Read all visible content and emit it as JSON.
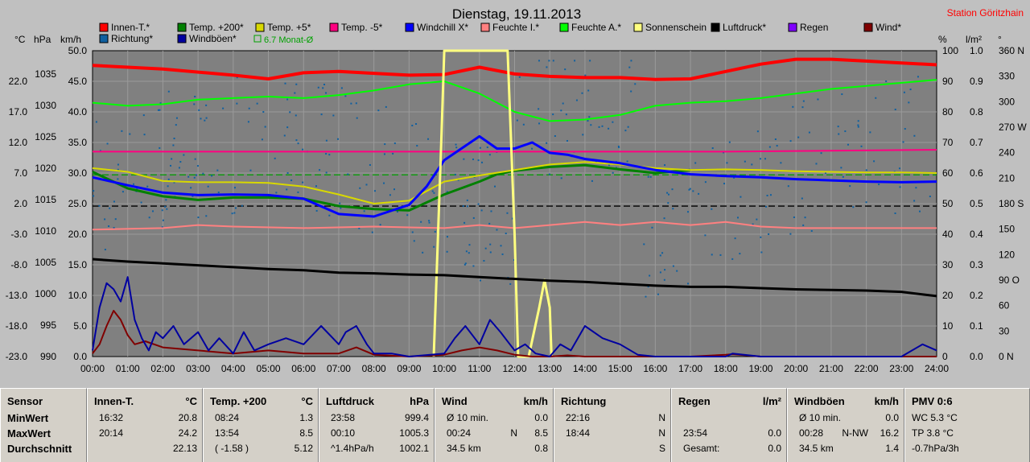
{
  "header": {
    "title": "Dienstag, 19.11.2013",
    "station": "Station Göritzhain",
    "unit_c": "°C",
    "unit_hpa": "hPa",
    "unit_kmh": "km/h",
    "unit_pct": "%",
    "unit_lm2": "l/m²",
    "unit_deg": "°"
  },
  "legend": [
    {
      "label": "Innen-T.*",
      "color": "#ff0000"
    },
    {
      "label": "Temp. +200*",
      "color": "#008000"
    },
    {
      "label": "Temp. +5*",
      "color": "#d8d800"
    },
    {
      "label": "Temp. -5*",
      "color": "#ff0080"
    },
    {
      "label": "Windchill X*",
      "color": "#0000ff"
    },
    {
      "label": "Feuchte I.*",
      "color": "#ff8080"
    },
    {
      "label": "Feuchte A.*",
      "color": "#00ff00"
    },
    {
      "label": "Sonnenschein",
      "color": "#ffff80"
    },
    {
      "label": "Luftdruck*",
      "color": "#000000"
    },
    {
      "label": "Regen",
      "color": "#8000ff"
    },
    {
      "label": "Wind*",
      "color": "#800000"
    },
    {
      "label": "Richtung*",
      "color": "#1060a0"
    },
    {
      "label": "Windböen*",
      "color": "#0000a0"
    },
    {
      "label": "6.7 Monat-Ø",
      "color": "#00a000"
    }
  ],
  "chart_data": {
    "type": "line",
    "title": "Dienstag, 19.11.2013",
    "x_tick_labels": [
      "00:00",
      "01:00",
      "02:00",
      "03:00",
      "04:00",
      "05:00",
      "06:00",
      "07:00",
      "08:00",
      "09:00",
      "10:00",
      "11:00",
      "12:00",
      "13:00",
      "14:00",
      "15:00",
      "16:00",
      "17:00",
      "18:00",
      "19:00",
      "20:00",
      "21:00",
      "22:00",
      "23:00",
      "24:00"
    ],
    "axes": {
      "celsius": {
        "unit": "°C",
        "range": [
          -23.0,
          27.0
        ],
        "ticks": [
          "22.0",
          "17.0",
          "12.0",
          "7.0",
          "2.0",
          "-3.0",
          "-8.0",
          "-13.0",
          "-18.0",
          "-23.0"
        ]
      },
      "hpa": {
        "unit": "hPa",
        "range": [
          990,
          1039.6
        ],
        "ticks": [
          "1035",
          "1030",
          "1025",
          "1020",
          "1015",
          "1010",
          "1005",
          "1000",
          "995",
          "990"
        ]
      },
      "kmh": {
        "unit": "km/h",
        "range": [
          0,
          50
        ],
        "ticks": [
          "50.0",
          "45.0",
          "40.0",
          "35.0",
          "30.0",
          "25.0",
          "20.0",
          "15.0",
          "10.0",
          "5.0",
          "0.0"
        ]
      },
      "percent": {
        "unit": "%",
        "range": [
          0,
          100
        ],
        "ticks": [
          "100",
          "90",
          "80",
          "70",
          "60",
          "50",
          "40",
          "30",
          "20",
          "10",
          "0"
        ]
      },
      "rain": {
        "unit": "l/m²",
        "range": [
          0,
          1.0
        ],
        "ticks": [
          "1.0",
          "0.9",
          "0.8",
          "0.7",
          "0.6",
          "0.5",
          "0.4",
          "0.3",
          "0.2",
          "0.1",
          "0.0"
        ]
      },
      "direction": {
        "unit": "°",
        "range": [
          0,
          360
        ],
        "ticks": [
          "360 N",
          "330",
          "300",
          "270 W",
          "240",
          "210",
          "180 S",
          "150",
          "120",
          "90 O",
          "60",
          "30",
          "0 N"
        ]
      }
    },
    "reference_lines": [
      {
        "name": "6.7 Monat-Ø",
        "axis": "celsius",
        "value": 6.7,
        "color": "#00a000"
      },
      {
        "axis": "kmh",
        "value": 24.6,
        "color": "#000000"
      }
    ],
    "series": [
      {
        "name": "Innen-T.*",
        "axis": "celsius",
        "color": "#ff0000",
        "width": 4,
        "x": [
          0,
          2,
          4,
          5,
          6,
          7,
          8,
          9,
          10,
          11,
          12,
          13,
          14,
          15,
          16,
          17,
          18,
          19,
          20,
          21,
          22,
          23,
          24
        ],
        "y": [
          24.6,
          24.0,
          23.0,
          22.4,
          23.4,
          23.6,
          23.3,
          23.0,
          23.1,
          24.3,
          23.2,
          22.8,
          22.6,
          22.6,
          22.3,
          22.4,
          23.6,
          24.8,
          25.6,
          25.6,
          25.3,
          25.0,
          24.7
        ]
      },
      {
        "name": "Temp. +200*",
        "axis": "celsius",
        "color": "#008000",
        "width": 3,
        "x": [
          0,
          1,
          2,
          3,
          4,
          5,
          6,
          7,
          8,
          9,
          10,
          11,
          11.5,
          12,
          13,
          14,
          15,
          16,
          17
        ],
        "y": [
          7.2,
          4.5,
          3.2,
          2.6,
          3.0,
          3.0,
          2.8,
          1.6,
          1.1,
          0.9,
          3.5,
          5.6,
          6.8,
          7.4,
          8.0,
          8.3,
          7.6,
          7.0,
          7.5
        ]
      },
      {
        "name": "Temp. +5*",
        "axis": "celsius",
        "color": "#d8d800",
        "width": 2,
        "x": [
          0,
          1,
          2,
          3,
          4,
          5,
          6,
          7,
          8,
          9,
          10,
          11,
          12,
          13,
          14,
          15,
          16,
          17,
          18,
          19,
          20,
          21,
          22,
          23,
          24
        ],
        "y": [
          7.8,
          7.2,
          5.7,
          5.5,
          5.5,
          5.4,
          4.8,
          3.5,
          2.0,
          2.5,
          5.6,
          6.6,
          7.5,
          8.4,
          8.8,
          8.4,
          7.8,
          7.5,
          7.6,
          7.5,
          7.3,
          7.2,
          7.1,
          7.1,
          7.0
        ]
      },
      {
        "name": "Temp. -5*",
        "axis": "celsius",
        "color": "#ff0080",
        "width": 2,
        "x": [
          0,
          6,
          12,
          18,
          24
        ],
        "y": [
          10.5,
          10.5,
          10.5,
          10.5,
          10.8
        ]
      },
      {
        "name": "Windchill X*",
        "axis": "celsius",
        "color": "#0000ff",
        "width": 3,
        "x": [
          0,
          1,
          2,
          3,
          4,
          5,
          6,
          7,
          8,
          9,
          9.5,
          10,
          11,
          11.5,
          12,
          12.5,
          13,
          13.5,
          14,
          15,
          16,
          17,
          18,
          19,
          20,
          21,
          22,
          23,
          24
        ],
        "y": [
          6.3,
          5.0,
          3.8,
          3.4,
          3.5,
          3.4,
          2.8,
          0.3,
          -0.1,
          1.8,
          4.8,
          9.1,
          13.0,
          11.0,
          11.0,
          12.0,
          10.3,
          10.0,
          9.3,
          8.6,
          7.5,
          6.8,
          6.5,
          6.3,
          6.0,
          5.8,
          5.6,
          5.5,
          5.6
        ]
      },
      {
        "name": "Feuchte I.*",
        "axis": "percent",
        "color": "#ff8080",
        "width": 2,
        "x": [
          0,
          2,
          3,
          4,
          6,
          8,
          10,
          11,
          12,
          13,
          14,
          15,
          16,
          17,
          18,
          19,
          20,
          22,
          24
        ],
        "y": [
          41.5,
          42.0,
          43.0,
          42.5,
          42.0,
          42.5,
          42.0,
          43.0,
          42.0,
          43.0,
          44.0,
          43.0,
          44.0,
          43.0,
          44.0,
          42.5,
          42.0,
          42.0,
          42.0
        ]
      },
      {
        "name": "Feuchte A.*",
        "axis": "percent",
        "color": "#00ff00",
        "width": 2,
        "x": [
          0,
          1,
          2,
          3,
          4,
          5,
          6,
          7,
          8,
          9,
          10,
          11,
          12,
          13,
          14,
          15,
          16,
          17,
          18,
          19,
          20,
          21,
          22,
          23,
          24
        ],
        "y": [
          83.0,
          82.0,
          82.5,
          84.0,
          84.5,
          85.0,
          84.5,
          85.5,
          87.0,
          89.0,
          90.0,
          86.0,
          80.0,
          77.0,
          77.5,
          79.0,
          82.0,
          83.0,
          83.5,
          84.5,
          86.0,
          87.5,
          88.5,
          89.5,
          90.5
        ]
      },
      {
        "name": "Sonnenschein",
        "axis": "percent",
        "color": "#ffff80",
        "width": 3,
        "x": [
          9.7,
          9.9,
          10.0,
          11.8,
          12.0,
          12.1,
          12.4,
          12.7,
          12.85,
          13.0,
          13.05
        ],
        "y": [
          0,
          65,
          100,
          100,
          40,
          0,
          0,
          16,
          25,
          16,
          0
        ]
      },
      {
        "name": "Luftdruck*",
        "axis": "hpa",
        "color": "#000000",
        "width": 3,
        "x": [
          0,
          1,
          2,
          3,
          4,
          5,
          6,
          7,
          8,
          9,
          10,
          11,
          12,
          13,
          14,
          15,
          16,
          17,
          18,
          19,
          20,
          21,
          22,
          23,
          24
        ],
        "y": [
          1005.8,
          1005.4,
          1005.1,
          1004.8,
          1004.5,
          1004.2,
          1004.0,
          1003.6,
          1003.5,
          1003.3,
          1003.2,
          1002.9,
          1002.6,
          1002.3,
          1002.1,
          1001.8,
          1001.5,
          1001.3,
          1001.3,
          1001.1,
          1000.9,
          1000.8,
          1000.7,
          1000.5,
          999.8
        ]
      },
      {
        "name": "Wind*",
        "axis": "kmh",
        "color": "#800000",
        "width": 2,
        "x": [
          0,
          0.2,
          0.4,
          0.6,
          0.8,
          1.0,
          1.2,
          1.5,
          2,
          3,
          4,
          5,
          6,
          7,
          7.5,
          8,
          9,
          10,
          10.5,
          11,
          11.5,
          12,
          12.5,
          13,
          13.5,
          14,
          15,
          16,
          17,
          18,
          18.2,
          19,
          24
        ],
        "y": [
          0.5,
          2.0,
          5.0,
          7.5,
          6.0,
          3.5,
          2.0,
          2.5,
          1.5,
          1.0,
          0.5,
          1.0,
          0.5,
          0.5,
          1.5,
          0.3,
          0,
          0.3,
          1.0,
          1.5,
          1.0,
          0.3,
          0,
          0,
          0.2,
          0,
          0,
          0,
          0,
          0.3,
          0.4,
          0,
          0
        ]
      },
      {
        "name": "Windböen*",
        "axis": "kmh",
        "color": "#0000a0",
        "width": 2,
        "x": [
          0,
          0.2,
          0.4,
          0.6,
          0.8,
          1.0,
          1.2,
          1.4,
          1.6,
          1.8,
          2,
          2.3,
          2.6,
          3,
          3.3,
          3.6,
          4,
          4.3,
          4.6,
          5,
          5.5,
          6,
          6.5,
          7,
          7.2,
          7.5,
          7.8,
          8,
          8.5,
          9,
          10,
          10.3,
          10.6,
          11,
          11.3,
          11.6,
          12,
          12.3,
          12.6,
          13,
          13.3,
          13.6,
          14,
          14.5,
          15,
          15.5,
          16,
          17,
          18,
          18.2,
          19,
          23,
          23.3,
          23.6,
          24
        ],
        "y": [
          1,
          8,
          12,
          11,
          9,
          13,
          6,
          3,
          1,
          4,
          3,
          5,
          2,
          4,
          1,
          3,
          0.5,
          4,
          1,
          2,
          3,
          2,
          5,
          2,
          4,
          5,
          2,
          0.5,
          0.5,
          0,
          0.5,
          3,
          5,
          2,
          6,
          4,
          1,
          2,
          0.5,
          0,
          2,
          1,
          5,
          3,
          2,
          0.3,
          0,
          0,
          0,
          0.5,
          0,
          0,
          1,
          2,
          1
        ]
      }
    ],
    "grid": true,
    "background": "#808080",
    "legend_position": "top"
  },
  "table": {
    "columns": [
      {
        "header": "Sensor",
        "unit": "",
        "rows": [
          [
            "MinWert"
          ],
          [
            "MaxWert"
          ],
          [
            "Durchschnitt"
          ]
        ]
      },
      {
        "header": "Innen-T.",
        "unit": "°C",
        "rows": [
          [
            "16:32",
            "",
            "20.8"
          ],
          [
            "20:14",
            "",
            "24.2"
          ],
          [
            "",
            "",
            "22.13"
          ]
        ]
      },
      {
        "header": "Temp. +200",
        "unit": "°C",
        "rows": [
          [
            "08:24",
            "",
            "1.3"
          ],
          [
            "13:54",
            "",
            "8.5"
          ],
          [
            "( -1.58 )",
            "",
            "5.12"
          ]
        ]
      },
      {
        "header": "Luftdruck",
        "unit": "hPa",
        "rows": [
          [
            "23:58",
            "",
            "999.4"
          ],
          [
            "00:10",
            "",
            "1005.3"
          ],
          [
            "^1.4hPa/h",
            "",
            "1002.1"
          ]
        ]
      },
      {
        "header": "Wind",
        "unit": "km/h",
        "rows": [
          [
            "Ø 10 min.",
            "",
            "0.0"
          ],
          [
            "00:24",
            "N",
            "8.5"
          ],
          [
            "34.5 km",
            "",
            "0.8"
          ]
        ]
      },
      {
        "header": "Richtung",
        "unit": "",
        "rows": [
          [
            "22:16",
            "",
            "N"
          ],
          [
            "18:44",
            "",
            "N"
          ],
          [
            "",
            "",
            "S"
          ]
        ]
      },
      {
        "header": "Regen",
        "unit": "l/m²",
        "rows": [
          [
            "",
            "",
            ""
          ],
          [
            "23:54",
            "",
            "0.0"
          ],
          [
            "Gesamt:",
            "",
            "0.0"
          ]
        ]
      },
      {
        "header": "Windböen",
        "unit": "km/h",
        "rows": [
          [
            "Ø 10 min.",
            "",
            "0.0"
          ],
          [
            "00:28",
            "N-NW",
            "16.2"
          ],
          [
            "34.5 km",
            "",
            "1.4"
          ]
        ]
      },
      {
        "header": "PMV 0:6",
        "unit": "",
        "rows": [
          [
            "WC 5.3 °C"
          ],
          [
            "TP 3.8 °C"
          ],
          [
            "-0.7hPa/3h"
          ]
        ]
      }
    ]
  }
}
